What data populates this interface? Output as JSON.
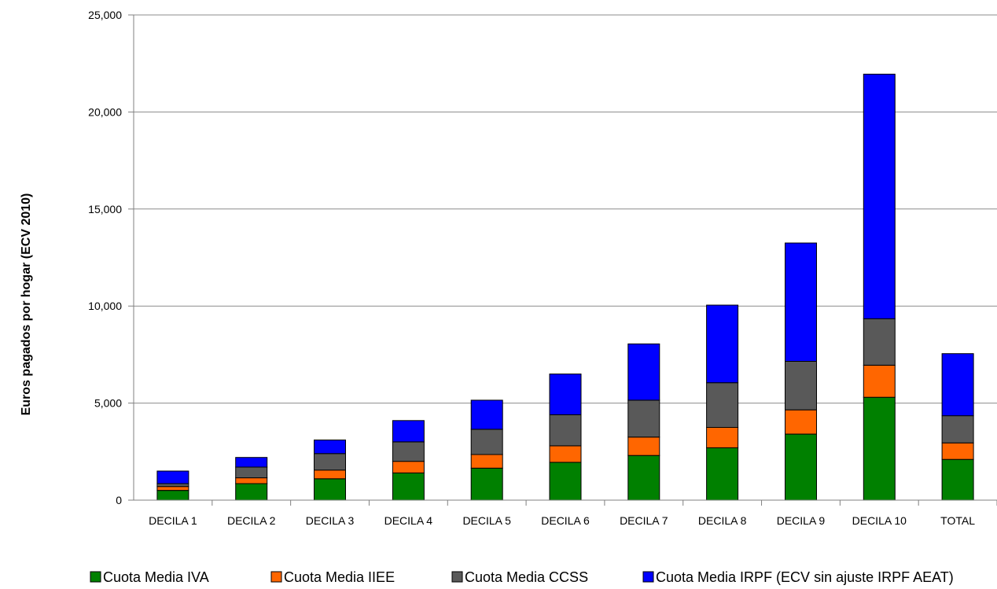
{
  "chart_data": {
    "type": "bar",
    "stacked": true,
    "title": "",
    "xlabel": "",
    "ylabel": "Euros pagados por hogar (ECV 2010)",
    "ylim": [
      0,
      25000
    ],
    "yticks": [
      0,
      5000,
      10000,
      15000,
      20000,
      25000
    ],
    "ytick_labels": [
      "0",
      "5,000",
      "10,000",
      "15,000",
      "20,000",
      "25,000"
    ],
    "grid": true,
    "legend_position": "bottom",
    "categories": [
      "DECILA 1",
      "DECILA 2",
      "DECILA 3",
      "DECILA 4",
      "DECILA 5",
      "DECILA 6",
      "DECILA 7",
      "DECILA 8",
      "DECILA 9",
      "DECILA 10",
      "TOTAL"
    ],
    "series": [
      {
        "name": "Cuota Media IVA",
        "color": "#008000",
        "values": [
          500,
          850,
          1100,
          1400,
          1650,
          1950,
          2300,
          2700,
          3400,
          5300,
          2100
        ]
      },
      {
        "name": "Cuota Media IIEE",
        "color": "#ff6600",
        "values": [
          200,
          300,
          450,
          600,
          700,
          850,
          950,
          1050,
          1250,
          1650,
          850
        ]
      },
      {
        "name": "Cuota Media CCSS",
        "color": "#595959",
        "values": [
          150,
          550,
          850,
          1000,
          1300,
          1600,
          1900,
          2300,
          2500,
          2400,
          1400
        ]
      },
      {
        "name": "Cuota Media IRPF (ECV sin ajuste IRPF AEAT)",
        "color": "#0000ff",
        "values": [
          650,
          500,
          700,
          1100,
          1500,
          2100,
          2900,
          4000,
          6100,
          12600,
          3200
        ]
      }
    ]
  }
}
